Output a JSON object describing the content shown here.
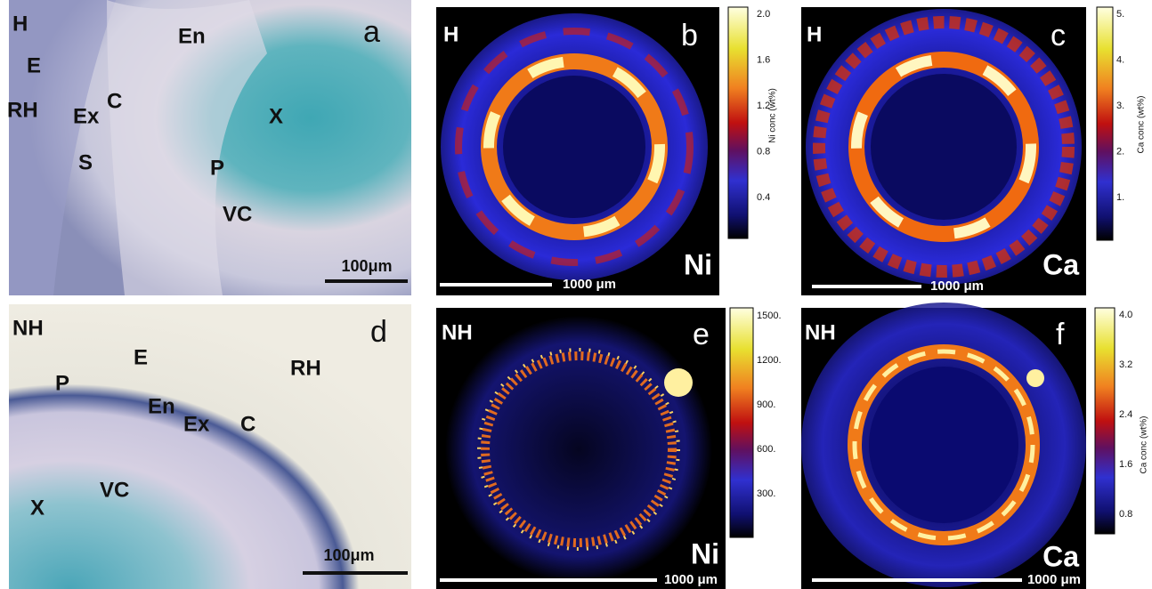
{
  "panels": [
    {
      "group": "H",
      "letter": "a",
      "labels": [
        "E",
        "Ex",
        "C",
        "En",
        "X",
        "RH",
        "S",
        "P",
        "VC"
      ],
      "scale_bar": "100μm"
    },
    {
      "group": "H",
      "letter": "b",
      "element": "Ni",
      "scale_bar": "1000 μm",
      "colorbar": {
        "title": "Ni conc (wt%)",
        "ticks": [
          "2.0",
          "1.6",
          "1.2",
          "0.8",
          "0.4"
        ]
      }
    },
    {
      "group": "H",
      "letter": "c",
      "element": "Ca",
      "scale_bar": "1000 μm",
      "colorbar": {
        "title": "Ca conc (wt%)",
        "ticks": [
          "5.",
          "4.",
          "3.",
          "2.",
          "1."
        ]
      }
    },
    {
      "group": "NH",
      "letter": "d",
      "labels": [
        "E",
        "Ex",
        "RH",
        "P",
        "En",
        "C",
        "X",
        "VC"
      ],
      "scale_bar": "100μm"
    },
    {
      "group": "NH",
      "letter": "e",
      "element": "Ni",
      "scale_bar": "1000 μm",
      "colorbar": {
        "ticks": [
          "1500.",
          "1200.",
          "900.",
          "600.",
          "300."
        ]
      }
    },
    {
      "group": "NH",
      "letter": "f",
      "element": "Ca",
      "scale_bar": "1000 μm",
      "colorbar": {
        "title": "Ca conc (wt%)",
        "ticks": [
          "4.0",
          "3.2",
          "2.4",
          "1.6",
          "0.8"
        ]
      }
    }
  ]
}
